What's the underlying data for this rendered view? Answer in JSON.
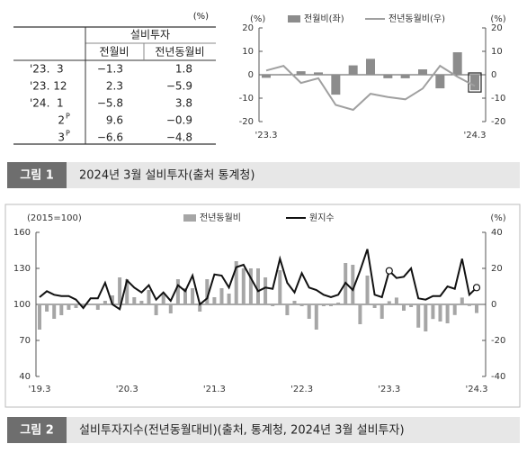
{
  "table": {
    "unit": "(%)",
    "group_header": "설비투자",
    "headers": [
      "전월비",
      "전년동월비"
    ],
    "rows": [
      {
        "label": "'23.  3",
        "cells": [
          "−1.3",
          "1.8"
        ]
      },
      {
        "label": "'23. 12",
        "cells": [
          "2.3",
          "−5.9"
        ]
      },
      {
        "label": "'24.  1",
        "cells": [
          "−5.8",
          "3.8"
        ]
      },
      {
        "label": "2",
        "sup": "P",
        "cells": [
          "9.6",
          "−0.9"
        ]
      },
      {
        "label": "3",
        "sup": "P",
        "cells": [
          "−6.6",
          "−4.8"
        ]
      }
    ]
  },
  "figure1": {
    "label": "그림 1",
    "caption": "2024년 3월 설비투자(출처 통계청)"
  },
  "figure2": {
    "label": "그림 2",
    "caption": "설비투자지수(전년동월대비)(출처, 통계청, 2024년 3월 설비투자)"
  },
  "chart_data": [
    {
      "type": "combo",
      "y_unit": "(%)",
      "y2_unit": "(%)",
      "categories": [
        "'23.3",
        null,
        null,
        null,
        null,
        null,
        null,
        null,
        null,
        null,
        null,
        null,
        "'24.3"
      ],
      "series": [
        {
          "name": "전월비(좌)",
          "type": "bar",
          "color": "#8c8c8c",
          "values": [
            -1.3,
            0.3,
            1.5,
            1.0,
            -8.5,
            4.0,
            6.8,
            -1.5,
            -1.5,
            2.3,
            -5.8,
            9.6,
            -6.6
          ]
        },
        {
          "name": "전년동월비(우)",
          "type": "line",
          "axis": "y2",
          "color": "#a0a0a0",
          "values": [
            1.8,
            3.8,
            -3.5,
            -1.5,
            -12.9,
            -15.0,
            -8.1,
            -9.5,
            -10.5,
            -5.9,
            3.8,
            -0.9,
            -4.8
          ]
        }
      ],
      "ylim": [
        -20,
        20
      ],
      "yticks": [
        -20,
        -10,
        0,
        10,
        20
      ],
      "y2lim": [
        -20,
        20
      ],
      "y2ticks": [
        -20,
        -10,
        0,
        10,
        20
      ],
      "highlight": [
        12
      ]
    },
    {
      "type": "combo",
      "y_unit": "(2015=100)",
      "y2_unit": "(%)",
      "categories": [
        "'19.3",
        null,
        null,
        null,
        null,
        null,
        null,
        null,
        null,
        null,
        null,
        null,
        "'20.3",
        null,
        null,
        null,
        null,
        null,
        null,
        null,
        null,
        null,
        null,
        null,
        "'21.3",
        null,
        null,
        null,
        null,
        null,
        null,
        null,
        null,
        null,
        null,
        null,
        "'22.3",
        null,
        null,
        null,
        null,
        null,
        null,
        null,
        null,
        null,
        null,
        null,
        "'23.3",
        null,
        null,
        null,
        null,
        null,
        null,
        null,
        null,
        null,
        null,
        null,
        "'24.3"
      ],
      "series": [
        {
          "name": "전년동월비",
          "type": "bar",
          "axis": "y2",
          "color": "#a6a6a6",
          "values": [
            -14,
            -4,
            -8,
            -6,
            -3,
            -2,
            -1,
            0,
            -3,
            2,
            5,
            15,
            14,
            4,
            2,
            8,
            -6,
            6,
            -5,
            14,
            9,
            9,
            -4,
            14,
            4,
            9,
            6,
            24,
            20,
            20,
            20,
            15,
            -1,
            19,
            -6,
            2,
            -1,
            -8,
            -14,
            -1,
            -1,
            1,
            23,
            22,
            -11,
            16,
            -2,
            -8,
            1.8,
            3.8,
            -3.5,
            -1.5,
            -12.9,
            -15.0,
            -8.1,
            -9.5,
            -10.5,
            -5.9,
            3.8,
            -0.9,
            -4.8
          ]
        },
        {
          "name": "원지수",
          "type": "line",
          "color": "#111111",
          "values": [
            106,
            111,
            108,
            107,
            107,
            104,
            97,
            105,
            105,
            118,
            100,
            96,
            120,
            114,
            110,
            116,
            104,
            110,
            103,
            116,
            111,
            124,
            100,
            105,
            125,
            124,
            114,
            131,
            133,
            122,
            111,
            114,
            113,
            138,
            118,
            110,
            126,
            114,
            112,
            108,
            106,
            108,
            118,
            112,
            128,
            146,
            108,
            106,
            128,
            122,
            123,
            130,
            105,
            104,
            107,
            107,
            115,
            113,
            138,
            108,
            114
          ]
        }
      ],
      "ylim": [
        40,
        160
      ],
      "yticks": [
        40,
        70,
        100,
        130,
        160
      ],
      "y2lim": [
        -40,
        40
      ],
      "y2ticks": [
        -40,
        -20,
        0,
        20,
        40
      ],
      "markers": [
        48,
        60
      ]
    }
  ]
}
